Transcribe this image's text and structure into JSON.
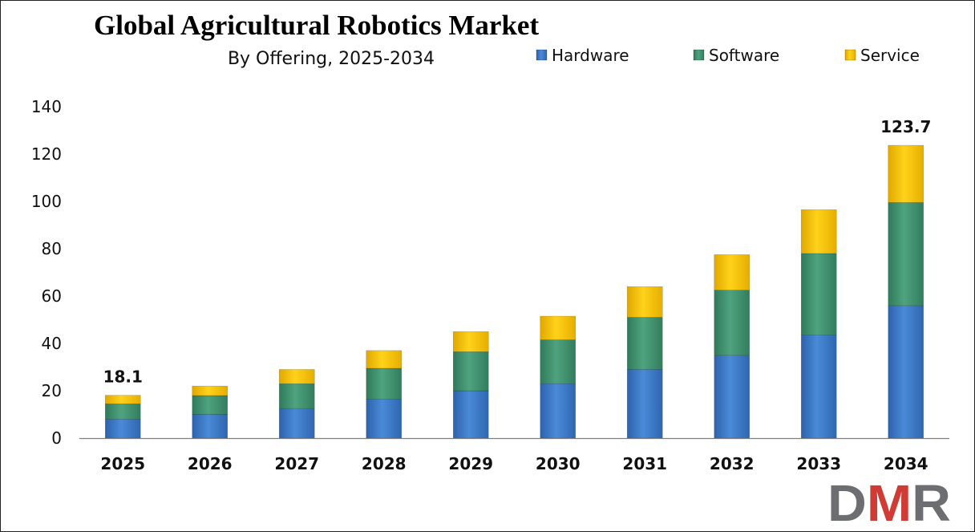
{
  "colors": {
    "Hardware": "#3b78c9",
    "Software": "#3e9270",
    "Service": "#f2c40f",
    "axis": "#7f7f7f",
    "logo_gray": "#6d6e71",
    "logo_red": "#cf3c35"
  },
  "logo": {
    "text": "DMR"
  },
  "chart_data": {
    "type": "bar",
    "stacked": true,
    "title": "Global Agricultural Robotics Market",
    "subtitle": "By Offering, 2025-2034",
    "categories": [
      "2025",
      "2026",
      "2027",
      "2028",
      "2029",
      "2030",
      "2031",
      "2032",
      "2033",
      "2034"
    ],
    "series": [
      {
        "name": "Hardware",
        "values": [
          8,
          10,
          12.5,
          16.5,
          20,
          23,
          29,
          35,
          43.5,
          56
        ]
      },
      {
        "name": "Software",
        "values": [
          6.5,
          8,
          10.5,
          13,
          16.5,
          18.5,
          22,
          27.5,
          34.5,
          43.5
        ]
      },
      {
        "name": "Service",
        "values": [
          3.6,
          4,
          6,
          7.5,
          8.5,
          10,
          13,
          15,
          18.5,
          24.2
        ]
      }
    ],
    "data_labels": [
      {
        "category": "2025",
        "text": "18.1"
      },
      {
        "category": "2034",
        "text": "123.7"
      }
    ],
    "ylim": [
      0,
      140
    ],
    "yticks": [
      0,
      20,
      40,
      60,
      80,
      100,
      120,
      140
    ],
    "grid": false,
    "legend_position": "top-right",
    "xlabel": "",
    "ylabel": ""
  }
}
